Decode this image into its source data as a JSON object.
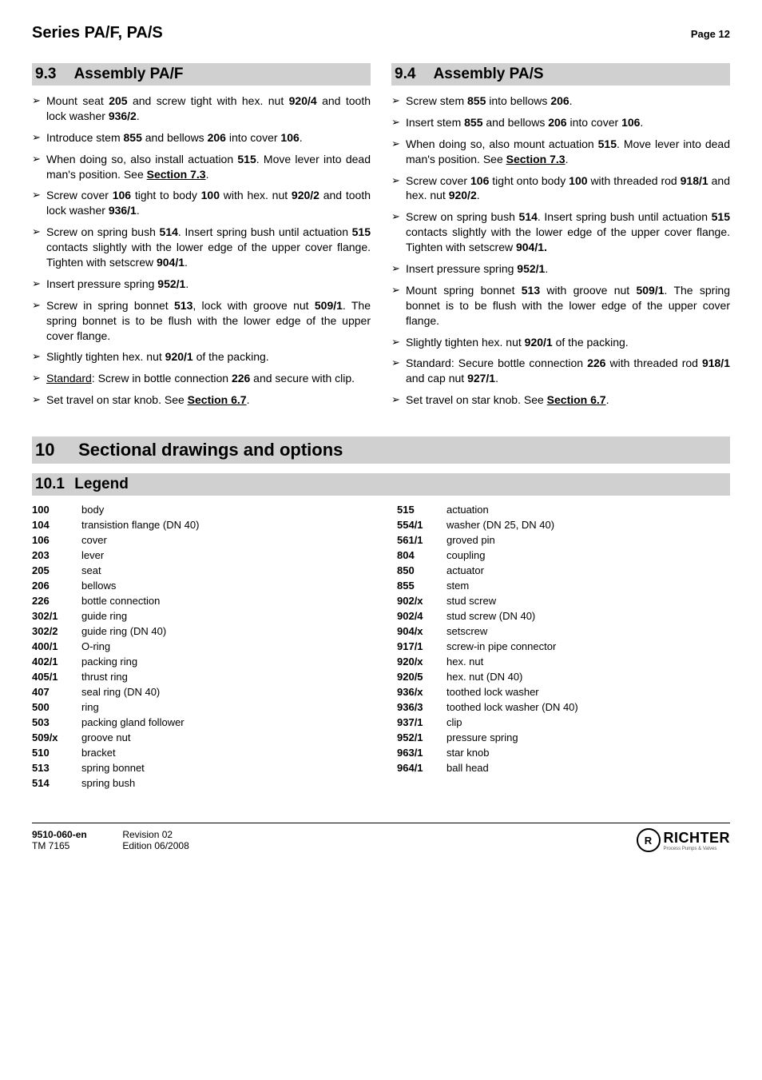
{
  "header": {
    "series": "Series PA/F, PA/S",
    "page": "Page 12"
  },
  "sec93": {
    "num": "9.3",
    "title": "Assembly PA/F",
    "items": [
      {
        "pre": "Mount seat ",
        "b1": "205",
        "mid1": " and screw tight with hex. nut ",
        "b2": "920/4",
        "mid2": " and tooth lock washer ",
        "b3": "936/2",
        "post": "."
      },
      {
        "pre": "Introduce stem ",
        "b1": "855",
        "mid1": " and bellows ",
        "b2": "206",
        "mid2": " into cover ",
        "b3": "106",
        "post": "."
      },
      {
        "pre": "When doing so, also install actuation ",
        "b1": "515",
        "mid1": ". Move lever into dead man's position. See ",
        "linkb": "Section 7.3",
        "post": "."
      },
      {
        "pre": "Screw cover ",
        "b1": "106",
        "mid1": " tight to body ",
        "b2": "100",
        "mid2": " with hex. nut ",
        "b3": "920/2",
        "mid3": " and tooth lock washer ",
        "b4": "936/1",
        "post": "."
      },
      {
        "pre": "Screw on spring bush ",
        "b1": "514",
        "mid1": ". Insert spring bush until actuation ",
        "b2": "515",
        "mid2": " contacts slightly with the lower edge of the upper cover flange. Tighten with setscrew ",
        "b3": "904/1",
        "post": "."
      },
      {
        "pre": "Insert pressure spring ",
        "b1": "952/1",
        "post": "."
      },
      {
        "pre": "Screw in spring bonnet ",
        "b1": "513",
        "mid1": ", lock with groove nut ",
        "b2": "509/1",
        "mid2": ". The spring bonnet is to be flush  with the lower edge of the upper cover flange.",
        "post": ""
      },
      {
        "pre": "Slightly tighten hex. nut ",
        "b1": "920/1",
        "mid1": " of the packing.",
        "post": ""
      },
      {
        "ulabel": "Standard",
        "pre": ": Screw in bottle connection ",
        "b1": "226",
        "mid1": " and secure with clip.",
        "post": ""
      },
      {
        "pre": "Set travel on star knob. See ",
        "linkb": "Section 6.7",
        "post": "."
      }
    ]
  },
  "sec94": {
    "num": "9.4",
    "title": "Assembly PA/S",
    "items": [
      {
        "pre": "Screw stem ",
        "b1": "855",
        "mid1": " into bellows ",
        "b2": "206",
        "post": "."
      },
      {
        "pre": "Insert stem ",
        "b1": "855",
        "mid1": " and bellows ",
        "b2": "206",
        "mid2": " into cover ",
        "b3": "106",
        "post": "."
      },
      {
        "pre": "When doing so, also mount actuation ",
        "b1": "515",
        "mid1": ". Move lever into dead man's position. See ",
        "linkb": "Section 7.3",
        "post": "."
      },
      {
        "pre": "Screw cover ",
        "b1": "106",
        "mid1": " tight onto body ",
        "b2": "100",
        "mid2": " with threaded rod ",
        "b3": "918/1",
        "mid3": " and hex. nut ",
        "b4": "920/2",
        "post": "."
      },
      {
        "pre": "Screw on spring bush ",
        "b1": "514",
        "mid1": ". Insert spring bush until actuation ",
        "b2": "515",
        "mid2": " contacts slightly with the lower edge of the upper cover flange. Tighten with setscrew ",
        "b3": "904/1.",
        "post": ""
      },
      {
        "pre": "Insert pressure spring ",
        "b1": "952/1",
        "post": "."
      },
      {
        "pre": "Mount spring bonnet ",
        "b1": "513",
        "mid1": " with groove nut ",
        "b2": "509/1",
        "mid2": ". The spring bonnet is to be flush with the lower edge of the upper cover flange.",
        "post": ""
      },
      {
        "pre": "Slightly tighten hex. nut ",
        "b1": "920/1",
        "mid1": " of the packing.",
        "post": ""
      },
      {
        "pre": "Standard: Secure bottle connection ",
        "b1": "226",
        "mid1": " with threaded rod ",
        "b2": "918/1",
        "mid2": " and cap nut ",
        "b3": "927/1",
        "post": "."
      },
      {
        "pre": "Set travel on star knob. See ",
        "linkb": "Section 6.7",
        "post": "."
      }
    ]
  },
  "sec10": {
    "num": "10",
    "title": "Sectional drawings and options"
  },
  "sec101": {
    "num": "10.1",
    "title": "Legend"
  },
  "legend": {
    "left": [
      {
        "c": "100",
        "d": "body"
      },
      {
        "c": "104",
        "d": "transistion flange  (DN 40)"
      },
      {
        "c": "106",
        "d": "cover"
      },
      {
        "c": "203",
        "d": "lever"
      },
      {
        "c": "205",
        "d": "seat"
      },
      {
        "c": "206",
        "d": "bellows"
      },
      {
        "c": "226",
        "d": "bottle connection"
      },
      {
        "c": "302/1",
        "d": "guide ring"
      },
      {
        "c": "302/2",
        "d": "guide ring  (DN 40)"
      },
      {
        "c": "400/1",
        "d": "O-ring"
      },
      {
        "c": "402/1",
        "d": "packing ring"
      },
      {
        "c": "405/1",
        "d": "thrust ring"
      },
      {
        "c": "407",
        "d": "seal ring  (DN 40)"
      },
      {
        "c": "500",
        "d": "ring"
      },
      {
        "c": "503",
        "d": "packing gland follower"
      },
      {
        "c": "509/x",
        "d": "groove nut"
      },
      {
        "c": "510",
        "d": "bracket"
      },
      {
        "c": "513",
        "d": "spring bonnet"
      },
      {
        "c": "514",
        "d": "spring bush"
      }
    ],
    "right": [
      {
        "c": "515",
        "d": "actuation"
      },
      {
        "c": "554/1",
        "d": "washer  (DN 25, DN 40)"
      },
      {
        "c": "561/1",
        "d": "groved pin"
      },
      {
        "c": "804",
        "d": "coupling"
      },
      {
        "c": "850",
        "d": "actuator"
      },
      {
        "c": "855",
        "d": "stem"
      },
      {
        "c": "902/x",
        "d": "stud screw"
      },
      {
        "c": "902/4",
        "d": "stud screw  (DN 40)"
      },
      {
        "c": "904/x",
        "d": "setscrew"
      },
      {
        "c": "917/1",
        "d": "screw-in pipe connector"
      },
      {
        "c": "920/x",
        "d": "hex. nut"
      },
      {
        "c": "920/5",
        "d": "hex. nut  (DN 40)"
      },
      {
        "c": "936/x",
        "d": "toothed lock washer"
      },
      {
        "c": "936/3",
        "d": "toothed lock washer  (DN 40)"
      },
      {
        "c": "937/1",
        "d": "clip"
      },
      {
        "c": "952/1",
        "d": "pressure spring"
      },
      {
        "c": "963/1",
        "d": "star knob"
      },
      {
        "c": "964/1",
        "d": "ball head"
      }
    ]
  },
  "footer": {
    "doc_code": "9510-060-en",
    "revision": "Revision 02",
    "tm": "TM 7165",
    "edition": "Edition 06/2008",
    "brand": "RICHTER",
    "brand_sub": "Process Pumps & Valves",
    "logo_initials": "R"
  }
}
